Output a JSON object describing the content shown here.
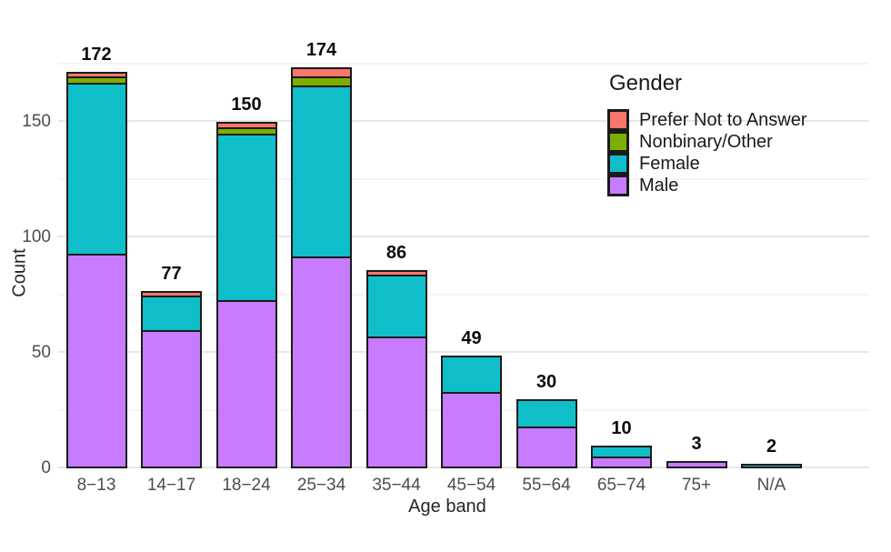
{
  "chart_data": {
    "type": "bar",
    "stacked": true,
    "xlabel": "Age band",
    "ylabel": "Count",
    "ylim": [
      0,
      183
    ],
    "yticks": [
      0,
      50,
      100,
      150
    ],
    "grid": {
      "major": [
        0,
        50,
        100,
        150
      ],
      "minor": [
        25,
        75,
        125,
        175
      ]
    },
    "categories": [
      "8−13",
      "14−17",
      "18−24",
      "25−34",
      "35−44",
      "45−54",
      "55−64",
      "65−74",
      "75+",
      "N/A"
    ],
    "totals": [
      172,
      77,
      150,
      174,
      86,
      49,
      30,
      10,
      3,
      2
    ],
    "series": [
      {
        "name": "Male",
        "color": "#C77CFF",
        "values": [
          93,
          60,
          73,
          92,
          57,
          33,
          18,
          5,
          3,
          0
        ]
      },
      {
        "name": "Female",
        "color": "#0FBEC8",
        "values": [
          74,
          15,
          72,
          74,
          27,
          16,
          12,
          5,
          0,
          2
        ]
      },
      {
        "name": "Nonbinary/Other",
        "color": "#7CAE00",
        "values": [
          3,
          0,
          3,
          4,
          0,
          0,
          0,
          0,
          0,
          0
        ]
      },
      {
        "name": "Prefer Not to Answer",
        "color": "#F8766D",
        "values": [
          2,
          2,
          2,
          4,
          2,
          0,
          0,
          0,
          0,
          0
        ]
      }
    ],
    "legend": {
      "title": "Gender",
      "position": "top-right-inside",
      "entries": [
        "Prefer Not to Answer",
        "Nonbinary/Other",
        "Female",
        "Male"
      ]
    },
    "colors": {
      "bar_outline": "#1a1a1a",
      "grid_major": "#e7e7e7",
      "grid_minor": "#f4f4f4",
      "tick_text": "#4d4d4d",
      "axis_title_text": "#262626",
      "total_label_text": "#0d0d0d",
      "background": "#ffffff"
    }
  }
}
